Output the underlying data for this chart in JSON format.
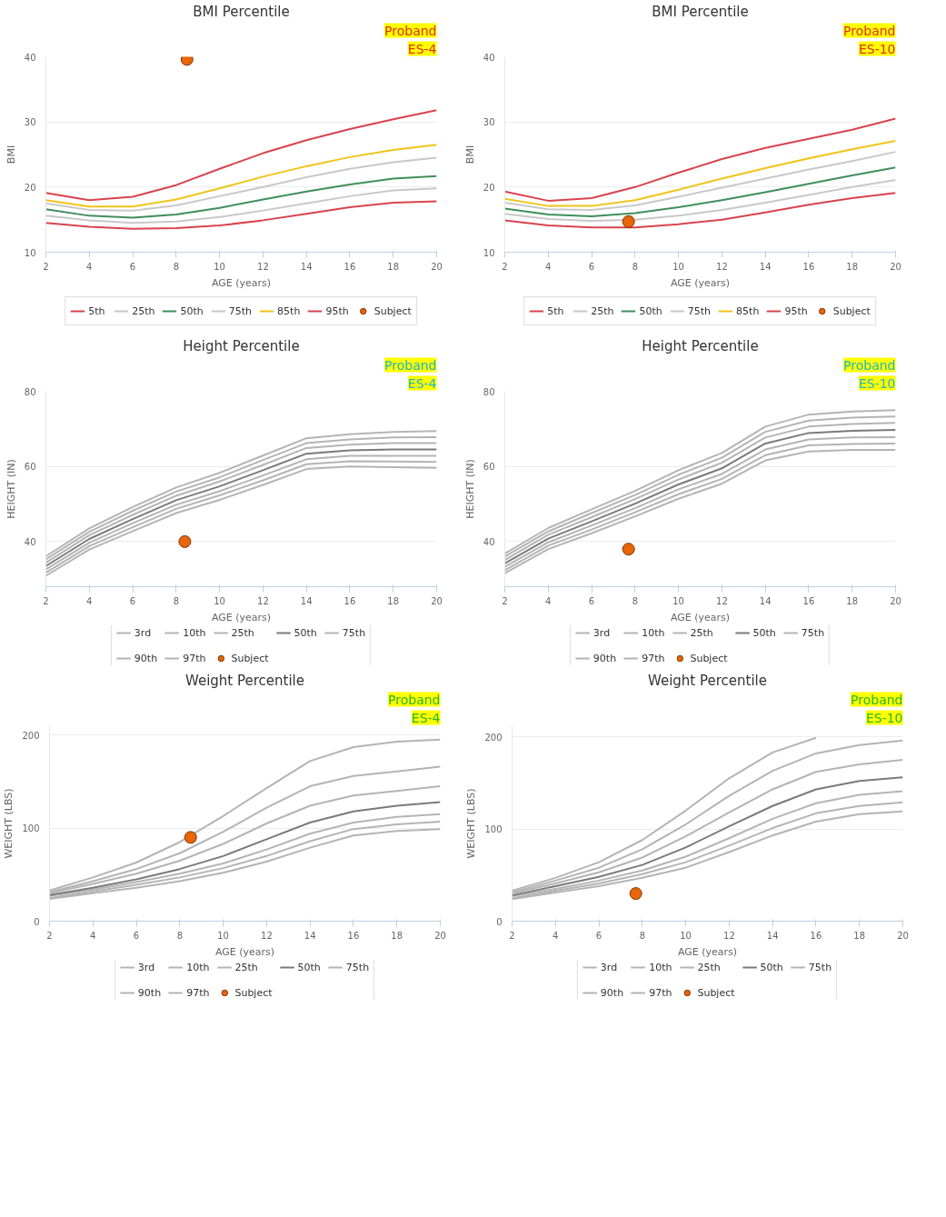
{
  "chart_data": [
    {
      "type": "line",
      "title": "BMI Percentile",
      "xlabel": "AGE (years)",
      "ylabel": "BMI",
      "annotations": [
        "Proband",
        "ES-4"
      ],
      "x": [
        2,
        4,
        6,
        8,
        10,
        12,
        14,
        16,
        18,
        20
      ],
      "xlim": [
        2,
        20
      ],
      "xticks": [
        2,
        4,
        6,
        8,
        10,
        12,
        14,
        16,
        18,
        20
      ],
      "ylim": [
        10,
        40
      ],
      "yticks": [
        10,
        20,
        30,
        40
      ],
      "grid": "y",
      "legend": "bottom",
      "series": [
        {
          "name": "5th",
          "color": "#d9434e",
          "values": [
            14.5,
            13.9,
            13.6,
            13.7,
            14.1,
            14.9,
            15.9,
            16.9,
            17.6,
            17.8
          ]
        },
        {
          "name": "25th",
          "color": "#c8c8c8",
          "values": [
            15.6,
            14.9,
            14.5,
            14.7,
            15.4,
            16.4,
            17.5,
            18.6,
            19.5,
            19.8
          ]
        },
        {
          "name": "50th",
          "color": "#3f8f5a",
          "values": [
            16.6,
            15.6,
            15.3,
            15.8,
            16.8,
            18.1,
            19.3,
            20.4,
            21.3,
            21.7
          ]
        },
        {
          "name": "75th",
          "color": "#c8c8c8",
          "values": [
            17.5,
            16.5,
            16.4,
            17.2,
            18.6,
            20.0,
            21.5,
            22.8,
            23.8,
            24.5
          ]
        },
        {
          "name": "85th",
          "color": "#f0c419",
          "values": [
            18.0,
            17.0,
            17.0,
            18.1,
            19.8,
            21.6,
            23.2,
            24.6,
            25.7,
            26.5
          ]
        },
        {
          "name": "95th",
          "color": "#d9434e",
          "values": [
            19.1,
            18.0,
            18.5,
            20.3,
            22.8,
            25.2,
            27.2,
            28.9,
            30.4,
            31.8
          ]
        },
        {
          "name": "Subject",
          "type": "scatter",
          "marker": "circle",
          "color": "#e8650a",
          "x": [
            8.5
          ],
          "values": [
            39.6
          ]
        }
      ]
    },
    {
      "type": "line",
      "title": "BMI Percentile",
      "xlabel": "AGE (years)",
      "ylabel": "BMI",
      "annotations": [
        "Proband",
        "ES-10"
      ],
      "x": [
        2,
        4,
        6,
        8,
        10,
        12,
        14,
        16,
        18,
        20
      ],
      "xlim": [
        2,
        20
      ],
      "xticks": [
        2,
        4,
        6,
        8,
        10,
        12,
        14,
        16,
        18,
        20
      ],
      "ylim": [
        10,
        40
      ],
      "yticks": [
        10,
        20,
        30,
        40
      ],
      "grid": "y",
      "legend": "bottom",
      "series": [
        {
          "name": "5th",
          "color": "#d9434e",
          "values": [
            14.9,
            14.1,
            13.8,
            13.8,
            14.3,
            15.0,
            16.1,
            17.3,
            18.3,
            19.1
          ]
        },
        {
          "name": "25th",
          "color": "#c8c8c8",
          "values": [
            15.9,
            15.1,
            14.8,
            15.0,
            15.6,
            16.5,
            17.6,
            18.8,
            20.0,
            21.1
          ]
        },
        {
          "name": "50th",
          "color": "#3f8f5a",
          "values": [
            16.7,
            15.8,
            15.5,
            16.0,
            16.9,
            18.0,
            19.2,
            20.5,
            21.8,
            23.0
          ]
        },
        {
          "name": "75th",
          "color": "#c8c8c8",
          "values": [
            17.6,
            16.6,
            16.5,
            17.2,
            18.5,
            19.9,
            21.3,
            22.7,
            24.0,
            25.4
          ]
        },
        {
          "name": "85th",
          "color": "#f0c419",
          "values": [
            18.2,
            17.1,
            17.1,
            18.0,
            19.6,
            21.3,
            22.9,
            24.4,
            25.8,
            27.1
          ]
        },
        {
          "name": "95th",
          "color": "#d9434e",
          "values": [
            19.3,
            17.9,
            18.3,
            20.0,
            22.2,
            24.3,
            26.0,
            27.4,
            28.8,
            30.5
          ]
        },
        {
          "name": "Subject",
          "type": "scatter",
          "marker": "circle",
          "color": "#e8650a",
          "x": [
            7.7
          ],
          "values": [
            14.7
          ]
        }
      ]
    },
    {
      "type": "line",
      "title": "Height Percentile",
      "xlabel": "AGE (years)",
      "ylabel": "HEIGHT (IN)",
      "annotations": [
        "Proband",
        "ES-4"
      ],
      "x": [
        2,
        4,
        6,
        8,
        10,
        12,
        14,
        16,
        18,
        20
      ],
      "xlim": [
        2,
        20
      ],
      "xticks": [
        2,
        4,
        6,
        8,
        10,
        12,
        14,
        16,
        18,
        20
      ],
      "ylim": [
        28,
        80
      ],
      "yticks": [
        40,
        60,
        80
      ],
      "grid": "y",
      "legend": "bottom",
      "series": [
        {
          "name": "3rd",
          "color": "#b4b4b4",
          "values": [
            30.9,
            37.9,
            42.8,
            47.6,
            51.1,
            55.1,
            59.3,
            60.0,
            59.8,
            59.6
          ]
        },
        {
          "name": "10th",
          "color": "#b4b4b4",
          "values": [
            31.7,
            38.8,
            43.8,
            48.7,
            52.3,
            56.3,
            60.6,
            61.4,
            61.3,
            61.2
          ]
        },
        {
          "name": "25th",
          "color": "#b4b4b4",
          "values": [
            32.6,
            39.7,
            44.9,
            49.8,
            53.4,
            57.6,
            61.9,
            62.8,
            62.8,
            62.8
          ]
        },
        {
          "name": "50th",
          "color": "#7a7a7a",
          "values": [
            33.5,
            40.7,
            46.0,
            51.0,
            54.7,
            59.0,
            63.4,
            64.3,
            64.5,
            64.5
          ]
        },
        {
          "name": "75th",
          "color": "#b4b4b4",
          "values": [
            34.4,
            41.7,
            47.1,
            52.2,
            56.0,
            60.4,
            64.9,
            65.8,
            66.2,
            66.2
          ]
        },
        {
          "name": "90th",
          "color": "#b4b4b4",
          "values": [
            35.3,
            42.6,
            48.2,
            53.3,
            57.1,
            61.7,
            66.2,
            67.2,
            67.7,
            67.8
          ]
        },
        {
          "name": "97th",
          "color": "#b4b4b4",
          "values": [
            36.1,
            43.5,
            49.2,
            54.4,
            58.3,
            62.9,
            67.5,
            68.6,
            69.2,
            69.4
          ]
        },
        {
          "name": "Subject",
          "type": "scatter",
          "marker": "circle",
          "color": "#e8650a",
          "x": [
            8.4
          ],
          "values": [
            40
          ]
        }
      ]
    },
    {
      "type": "line",
      "title": "Height Percentile",
      "xlabel": "AGE (years)",
      "ylabel": "HEIGHT (IN)",
      "annotations": [
        "Proband",
        "ES-10"
      ],
      "x": [
        2,
        4,
        6,
        8,
        10,
        12,
        14,
        16,
        18,
        20
      ],
      "xlim": [
        2,
        20
      ],
      "xticks": [
        2,
        4,
        6,
        8,
        10,
        12,
        14,
        16,
        18,
        20
      ],
      "ylim": [
        28,
        80
      ],
      "yticks": [
        40,
        60,
        80
      ],
      "grid": "y",
      "legend": "bottom",
      "series": [
        {
          "name": "3rd",
          "color": "#b4b4b4",
          "values": [
            31.6,
            38.0,
            42.2,
            46.7,
            51.4,
            55.4,
            61.6,
            64.0,
            64.4,
            64.4
          ]
        },
        {
          "name": "10th",
          "color": "#b4b4b4",
          "values": [
            32.4,
            38.9,
            43.2,
            47.8,
            52.6,
            56.7,
            63.0,
            65.6,
            66.0,
            66.1
          ]
        },
        {
          "name": "25th",
          "color": "#b4b4b4",
          "values": [
            33.3,
            39.8,
            44.3,
            48.9,
            53.9,
            58.0,
            64.5,
            67.2,
            67.7,
            67.8
          ]
        },
        {
          "name": "50th",
          "color": "#7a7a7a",
          "values": [
            34.2,
            40.8,
            45.4,
            50.1,
            55.2,
            59.5,
            66.1,
            68.9,
            69.5,
            69.7
          ]
        },
        {
          "name": "75th",
          "color": "#b4b4b4",
          "values": [
            35.1,
            41.8,
            46.5,
            51.3,
            56.5,
            61.0,
            67.7,
            70.6,
            71.3,
            71.6
          ]
        },
        {
          "name": "90th",
          "color": "#b4b4b4",
          "values": [
            36.0,
            42.7,
            47.6,
            52.4,
            57.8,
            62.3,
            69.2,
            72.2,
            73.0,
            73.3
          ]
        },
        {
          "name": "97th",
          "color": "#b4b4b4",
          "values": [
            36.8,
            43.6,
            48.6,
            53.5,
            59.0,
            63.6,
            70.6,
            73.8,
            74.6,
            75.0
          ]
        },
        {
          "name": "Subject",
          "type": "scatter",
          "marker": "circle",
          "color": "#e8650a",
          "x": [
            7.7
          ],
          "values": [
            38
          ]
        }
      ]
    },
    {
      "type": "line",
      "title": "Weight Percentile",
      "xlabel": "AGE (years)",
      "ylabel": "WEIGHT (LBS)",
      "annotations": [
        "Proband",
        "ES-4"
      ],
      "x": [
        2,
        4,
        6,
        8,
        10,
        12,
        14,
        16,
        18,
        20
      ],
      "xlim": [
        2,
        20
      ],
      "xticks": [
        2,
        4,
        6,
        8,
        10,
        12,
        14,
        16,
        18,
        20
      ],
      "ylim": [
        0,
        210
      ],
      "yticks": [
        0,
        100,
        200
      ],
      "grid": "y",
      "legend": "bottom",
      "series": [
        {
          "name": "3rd",
          "color": "#b4b4b4",
          "values": [
            24,
            30,
            36,
            43,
            52,
            64,
            79,
            92,
            97,
            99
          ]
        },
        {
          "name": "10th",
          "color": "#b4b4b4",
          "values": [
            25,
            32,
            39,
            47,
            57,
            70,
            86,
            99,
            104,
            107
          ]
        },
        {
          "name": "25th",
          "color": "#b4b4b4",
          "values": [
            27,
            34,
            42,
            51,
            62,
            77,
            94,
            106,
            112,
            115
          ]
        },
        {
          "name": "50th",
          "color": "#7a7a7a",
          "values": [
            28,
            36,
            45,
            56,
            70,
            88,
            106,
            118,
            124,
            128
          ]
        },
        {
          "name": "75th",
          "color": "#b4b4b4",
          "values": [
            30,
            40,
            51,
            65,
            83,
            105,
            124,
            135,
            140,
            145
          ]
        },
        {
          "name": "90th",
          "color": "#b4b4b4",
          "values": [
            31,
            43,
            56,
            73,
            96,
            122,
            145,
            156,
            161,
            166
          ]
        },
        {
          "name": "97th",
          "color": "#b4b4b4",
          "values": [
            33,
            47,
            63,
            85,
            113,
            143,
            172,
            187,
            193,
            195
          ]
        },
        {
          "name": "Subject",
          "type": "scatter",
          "marker": "circle",
          "color": "#e8650a",
          "x": [
            8.5
          ],
          "values": [
            90
          ]
        }
      ]
    },
    {
      "type": "line",
      "title": "Weight Percentile",
      "xlabel": "AGE (years)",
      "ylabel": "WEIGHT (LBS)",
      "annotations": [
        "Proband",
        "ES-10"
      ],
      "x": [
        2,
        4,
        6,
        8,
        10,
        12,
        14,
        16,
        18,
        20
      ],
      "xlim": [
        2,
        20
      ],
      "xticks": [
        2,
        4,
        6,
        8,
        10,
        12,
        14,
        16,
        18,
        20
      ],
      "ylim": [
        0,
        212
      ],
      "yticks": [
        0,
        100,
        200
      ],
      "grid": "y",
      "legend": "bottom",
      "series": [
        {
          "name": "3rd",
          "color": "#b4b4b4",
          "values": [
            24,
            31,
            38,
            47,
            58,
            75,
            93,
            108,
            116,
            119
          ]
        },
        {
          "name": "10th",
          "color": "#b4b4b4",
          "values": [
            25,
            33,
            41,
            51,
            64,
            82,
            101,
            117,
            125,
            129
          ]
        },
        {
          "name": "25th",
          "color": "#b4b4b4",
          "values": [
            27,
            35,
            44,
            55,
            70,
            90,
            111,
            128,
            137,
            141
          ]
        },
        {
          "name": "50th",
          "color": "#7a7a7a",
          "values": [
            28,
            38,
            48,
            61,
            80,
            103,
            125,
            143,
            152,
            156
          ]
        },
        {
          "name": "75th",
          "color": "#b4b4b4",
          "values": [
            30,
            41,
            53,
            69,
            92,
            118,
            143,
            162,
            170,
            175
          ]
        },
        {
          "name": "90th",
          "color": "#b4b4b4",
          "values": [
            31,
            44,
            58,
            78,
            105,
            136,
            163,
            182,
            191,
            196
          ]
        },
        {
          "name": "97th",
          "color": "#b4b4b4",
          "values": [
            33,
            47,
            64,
            88,
            120,
            155,
            183,
            199,
            null,
            null
          ]
        },
        {
          "name": "Subject",
          "type": "scatter",
          "marker": "circle",
          "color": "#e8650a",
          "x": [
            7.7
          ],
          "values": [
            30
          ]
        }
      ]
    }
  ]
}
